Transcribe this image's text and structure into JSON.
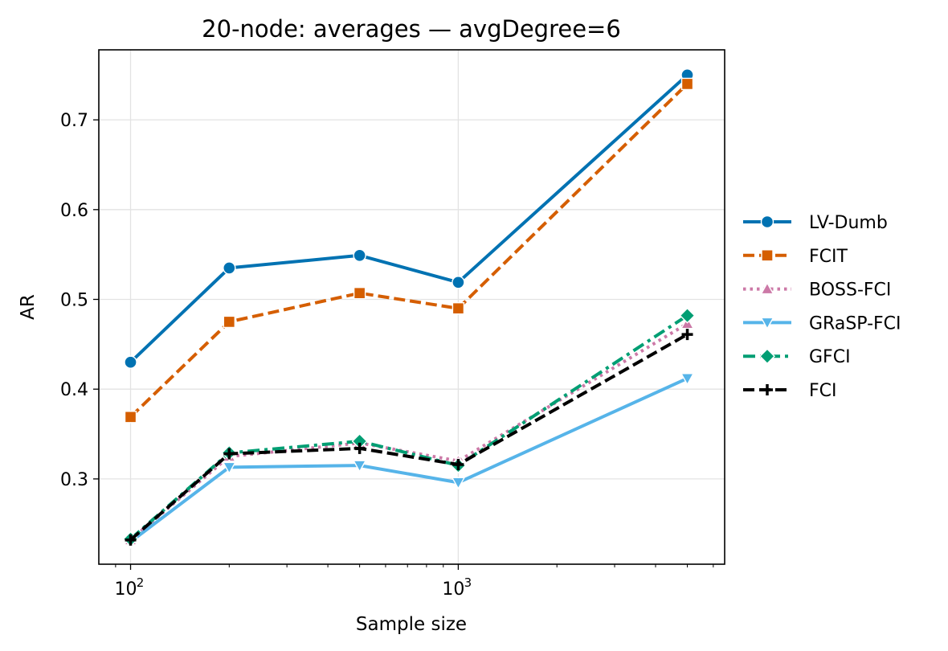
{
  "chart_data": {
    "type": "line",
    "title": "20-node: averages — avgDegree=6",
    "xlabel": "Sample size",
    "ylabel": "AR",
    "xscale": "log",
    "xlim": [
      80,
      6500
    ],
    "ylim": [
      0.205,
      0.778
    ],
    "grid": true,
    "legend_position": "right",
    "x": [
      100,
      200,
      500,
      1000,
      5000
    ],
    "x_tick_labels": [
      {
        "value": 100,
        "base": "10",
        "exp": "2"
      },
      {
        "value": 1000,
        "base": "10",
        "exp": "3"
      }
    ],
    "y_ticks": [
      {
        "value": 0.3,
        "label": "0.3"
      },
      {
        "value": 0.4,
        "label": "0.4"
      },
      {
        "value": 0.5,
        "label": "0.5"
      },
      {
        "value": 0.6,
        "label": "0.6"
      },
      {
        "value": 0.7,
        "label": "0.7"
      }
    ],
    "series": [
      {
        "name": "LV-Dumb",
        "color": "#0072B2",
        "dash": "solid",
        "marker": "circle",
        "values": [
          0.43,
          0.535,
          0.549,
          0.519,
          0.75
        ]
      },
      {
        "name": "FCIT",
        "color": "#D55E00",
        "dash": "dashed",
        "marker": "square",
        "values": [
          0.369,
          0.475,
          0.507,
          0.49,
          0.74
        ]
      },
      {
        "name": "BOSS-FCI",
        "color": "#CC79A7",
        "dash": "dotted",
        "marker": "triangle-up",
        "values": [
          0.232,
          0.325,
          0.34,
          0.32,
          0.473
        ]
      },
      {
        "name": "GRaSP-FCI",
        "color": "#56B4E9",
        "dash": "solid",
        "marker": "triangle-down",
        "values": [
          0.23,
          0.313,
          0.315,
          0.296,
          0.412
        ]
      },
      {
        "name": "GFCI",
        "color": "#009E73",
        "dash": "dashdot",
        "marker": "diamond",
        "values": [
          0.233,
          0.329,
          0.342,
          0.315,
          0.482
        ]
      },
      {
        "name": "FCI",
        "color": "#000000",
        "dash": "dashed",
        "marker": "plus",
        "values": [
          0.232,
          0.328,
          0.334,
          0.316,
          0.461
        ]
      }
    ]
  }
}
